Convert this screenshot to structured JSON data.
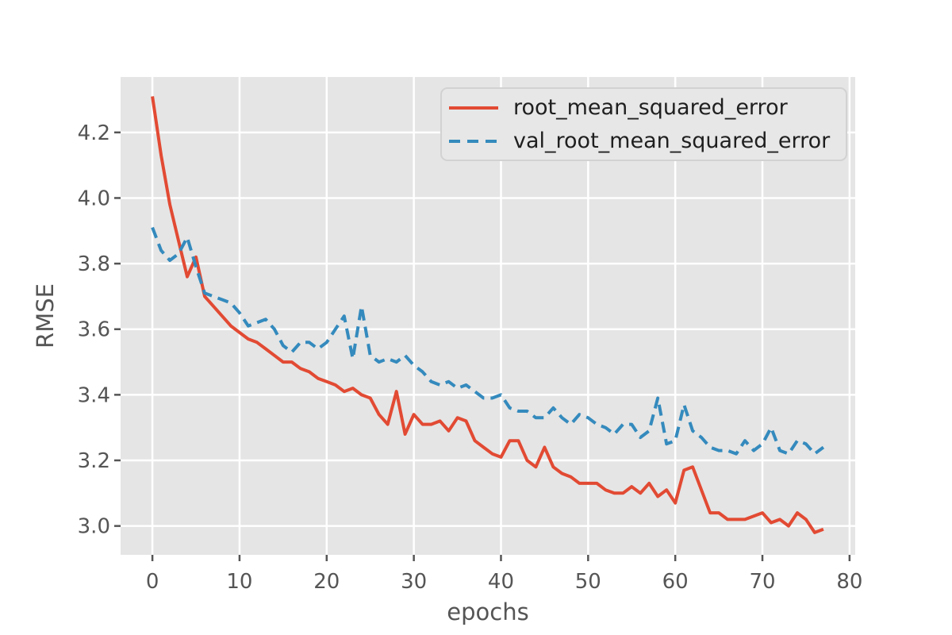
{
  "style": {
    "figure_bg": "#ffffff",
    "plot_bg": "#e5e5e5",
    "grid_color": "#ffffff",
    "tick_color": "#555555",
    "axis_label_color": "#555555",
    "legend_bg": "#e7e7e7",
    "legend_border": "#d2d2d2",
    "legend_text_color": "#1f1f1f"
  },
  "chart_data": {
    "type": "line",
    "title": "",
    "xlabel": "epochs",
    "ylabel": "RMSE",
    "grid": true,
    "legend_position": "upper right",
    "xlim": [
      -3.65,
      80.65
    ],
    "ylim": [
      2.912,
      4.369
    ],
    "xticks": [
      0,
      10,
      20,
      30,
      40,
      50,
      60,
      70,
      80
    ],
    "yticks": [
      3.0,
      3.2,
      3.4,
      3.6,
      3.8,
      4.0,
      4.2
    ],
    "x": [
      0,
      1,
      2,
      3,
      4,
      5,
      6,
      7,
      8,
      9,
      10,
      11,
      12,
      13,
      14,
      15,
      16,
      17,
      18,
      19,
      20,
      21,
      22,
      23,
      24,
      25,
      26,
      27,
      28,
      29,
      30,
      31,
      32,
      33,
      34,
      35,
      36,
      37,
      38,
      39,
      40,
      41,
      42,
      43,
      44,
      45,
      46,
      47,
      48,
      49,
      50,
      51,
      52,
      53,
      54,
      55,
      56,
      57,
      58,
      59,
      60,
      61,
      62,
      63,
      64,
      65,
      66,
      67,
      68,
      69,
      70,
      71,
      72,
      73,
      74,
      75,
      76,
      77
    ],
    "series": [
      {
        "name": "root_mean_squared_error",
        "color": "#E24A33",
        "line_style": "solid",
        "values": [
          4.31,
          4.13,
          3.98,
          3.87,
          3.76,
          3.82,
          3.7,
          3.67,
          3.64,
          3.61,
          3.59,
          3.57,
          3.56,
          3.54,
          3.52,
          3.5,
          3.5,
          3.48,
          3.47,
          3.45,
          3.44,
          3.43,
          3.41,
          3.42,
          3.4,
          3.39,
          3.34,
          3.31,
          3.41,
          3.28,
          3.34,
          3.31,
          3.31,
          3.32,
          3.29,
          3.33,
          3.32,
          3.26,
          3.24,
          3.22,
          3.21,
          3.26,
          3.26,
          3.2,
          3.18,
          3.24,
          3.18,
          3.16,
          3.15,
          3.13,
          3.13,
          3.13,
          3.11,
          3.1,
          3.1,
          3.12,
          3.1,
          3.13,
          3.09,
          3.11,
          3.07,
          3.17,
          3.18,
          3.11,
          3.04,
          3.04,
          3.02,
          3.02,
          3.02,
          3.03,
          3.04,
          3.01,
          3.02,
          3.0,
          3.04,
          3.02,
          2.98,
          2.99
        ]
      },
      {
        "name": "val_root_mean_squared_error",
        "color": "#348ABD",
        "line_style": "dashed",
        "values": [
          3.91,
          3.84,
          3.81,
          3.83,
          3.88,
          3.79,
          3.71,
          3.7,
          3.69,
          3.68,
          3.65,
          3.61,
          3.62,
          3.63,
          3.6,
          3.55,
          3.53,
          3.56,
          3.56,
          3.54,
          3.56,
          3.6,
          3.64,
          3.51,
          3.67,
          3.52,
          3.5,
          3.51,
          3.5,
          3.52,
          3.49,
          3.47,
          3.44,
          3.43,
          3.44,
          3.42,
          3.43,
          3.41,
          3.39,
          3.39,
          3.4,
          3.36,
          3.35,
          3.35,
          3.33,
          3.33,
          3.36,
          3.33,
          3.31,
          3.34,
          3.33,
          3.31,
          3.3,
          3.28,
          3.31,
          3.31,
          3.27,
          3.29,
          3.39,
          3.25,
          3.26,
          3.37,
          3.29,
          3.27,
          3.24,
          3.23,
          3.23,
          3.22,
          3.26,
          3.23,
          3.25,
          3.3,
          3.23,
          3.22,
          3.26,
          3.25,
          3.22,
          3.24
        ]
      }
    ]
  }
}
